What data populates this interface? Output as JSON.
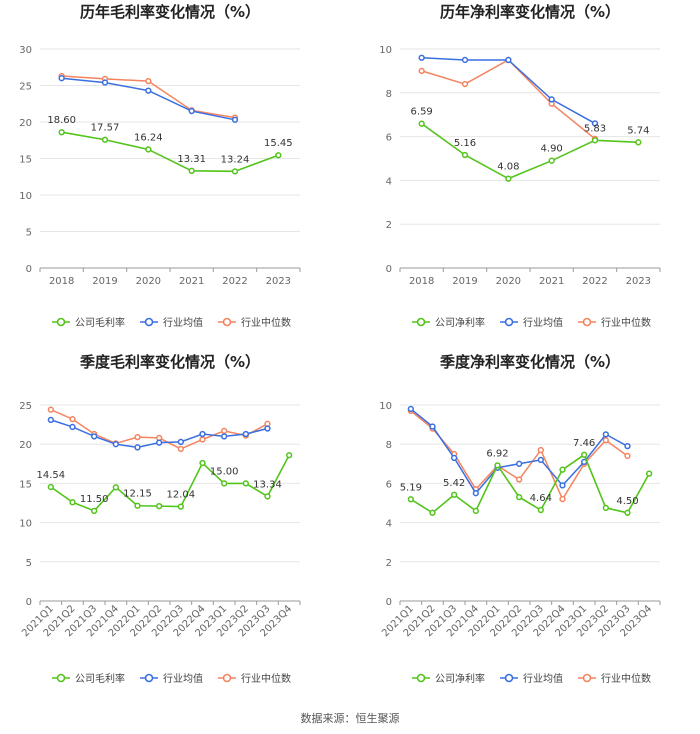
{
  "footer": {
    "source": "数据来源：恒生聚源"
  },
  "colors": {
    "company": "#52c41a",
    "avg": "#3a6fe0",
    "median": "#f4845f",
    "grid": "#e6e6e6",
    "axis": "#999999",
    "tick": "#666666"
  },
  "chart_data": [
    {
      "id": "annual-gross",
      "type": "line",
      "title": "历年毛利率变化情况（%）",
      "categories": [
        "2018",
        "2019",
        "2020",
        "2021",
        "2022",
        "2023"
      ],
      "ylim": [
        0,
        30
      ],
      "yticks": [
        0,
        5,
        10,
        15,
        20,
        25,
        30
      ],
      "series": [
        {
          "name": "公司毛利率",
          "key": "company",
          "values": [
            18.6,
            17.57,
            16.24,
            13.31,
            13.24,
            15.45
          ],
          "labels": [
            true,
            true,
            true,
            true,
            true,
            true
          ]
        },
        {
          "name": "行业均值",
          "key": "avg",
          "values": [
            26.0,
            25.4,
            24.3,
            21.5,
            20.3,
            null
          ]
        },
        {
          "name": "行业中位数",
          "key": "median",
          "values": [
            26.3,
            25.9,
            25.6,
            21.6,
            20.6,
            null
          ]
        }
      ]
    },
    {
      "id": "annual-net",
      "type": "line",
      "title": "历年净利率变化情况（%）",
      "categories": [
        "2018",
        "2019",
        "2020",
        "2021",
        "2022",
        "2023"
      ],
      "ylim": [
        0,
        10
      ],
      "yticks": [
        0,
        2,
        4,
        6,
        8,
        10
      ],
      "series": [
        {
          "name": "公司净利率",
          "key": "company",
          "values": [
            6.59,
            5.16,
            4.08,
            4.9,
            5.83,
            5.74
          ],
          "labels": [
            true,
            true,
            true,
            true,
            true,
            true
          ]
        },
        {
          "name": "行业均值",
          "key": "avg",
          "values": [
            9.6,
            9.5,
            9.5,
            7.7,
            6.6,
            null
          ]
        },
        {
          "name": "行业中位数",
          "key": "median",
          "values": [
            9.0,
            8.4,
            9.5,
            7.5,
            5.9,
            null
          ]
        }
      ]
    },
    {
      "id": "quarterly-gross",
      "type": "line",
      "title": "季度毛利率变化情况（%）",
      "categories": [
        "2021Q1",
        "2021Q2",
        "2021Q3",
        "2021Q4",
        "2022Q1",
        "2022Q2",
        "2022Q3",
        "2022Q4",
        "2023Q1",
        "2023Q2",
        "2023Q3",
        "2023Q4"
      ],
      "rotate_ticks": true,
      "ylim": [
        0,
        25
      ],
      "yticks": [
        0,
        5,
        10,
        15,
        20,
        25
      ],
      "series": [
        {
          "name": "公司毛利率",
          "key": "company",
          "values": [
            14.54,
            12.6,
            11.5,
            14.5,
            12.15,
            12.1,
            12.04,
            17.6,
            15.0,
            15.0,
            13.34,
            18.6
          ],
          "labels": [
            true,
            false,
            true,
            false,
            true,
            false,
            true,
            false,
            true,
            false,
            true,
            false
          ]
        },
        {
          "name": "行业均值",
          "key": "avg",
          "values": [
            23.1,
            22.2,
            21.0,
            20.0,
            19.6,
            20.2,
            20.3,
            21.3,
            21.0,
            21.3,
            22.0,
            null
          ]
        },
        {
          "name": "行业中位数",
          "key": "median",
          "values": [
            24.4,
            23.2,
            21.3,
            20.1,
            20.9,
            20.8,
            19.4,
            20.6,
            21.7,
            21.1,
            22.6,
            null
          ]
        }
      ]
    },
    {
      "id": "quarterly-net",
      "type": "line",
      "title": "季度净利率变化情况（%）",
      "categories": [
        "2021Q1",
        "2021Q2",
        "2021Q3",
        "2021Q4",
        "2022Q1",
        "2022Q2",
        "2022Q3",
        "2022Q4",
        "2023Q1",
        "2023Q2",
        "2023Q3",
        "2023Q4"
      ],
      "rotate_ticks": true,
      "ylim": [
        0,
        10
      ],
      "yticks": [
        0,
        2,
        4,
        6,
        8,
        10
      ],
      "series": [
        {
          "name": "公司净利率",
          "key": "company",
          "values": [
            5.19,
            4.5,
            5.42,
            4.6,
            6.92,
            5.3,
            4.64,
            6.7,
            7.46,
            4.75,
            4.5,
            6.5
          ],
          "labels": [
            true,
            false,
            true,
            false,
            true,
            false,
            true,
            false,
            true,
            false,
            true,
            false
          ]
        },
        {
          "name": "行业均值",
          "key": "avg",
          "values": [
            9.8,
            8.9,
            7.3,
            5.5,
            6.8,
            7.0,
            7.2,
            5.9,
            7.1,
            8.5,
            7.9,
            null
          ]
        },
        {
          "name": "行业中位数",
          "key": "median",
          "values": [
            9.7,
            8.8,
            7.5,
            5.7,
            6.9,
            6.2,
            7.7,
            5.2,
            7.0,
            8.2,
            7.4,
            null
          ]
        }
      ]
    }
  ]
}
